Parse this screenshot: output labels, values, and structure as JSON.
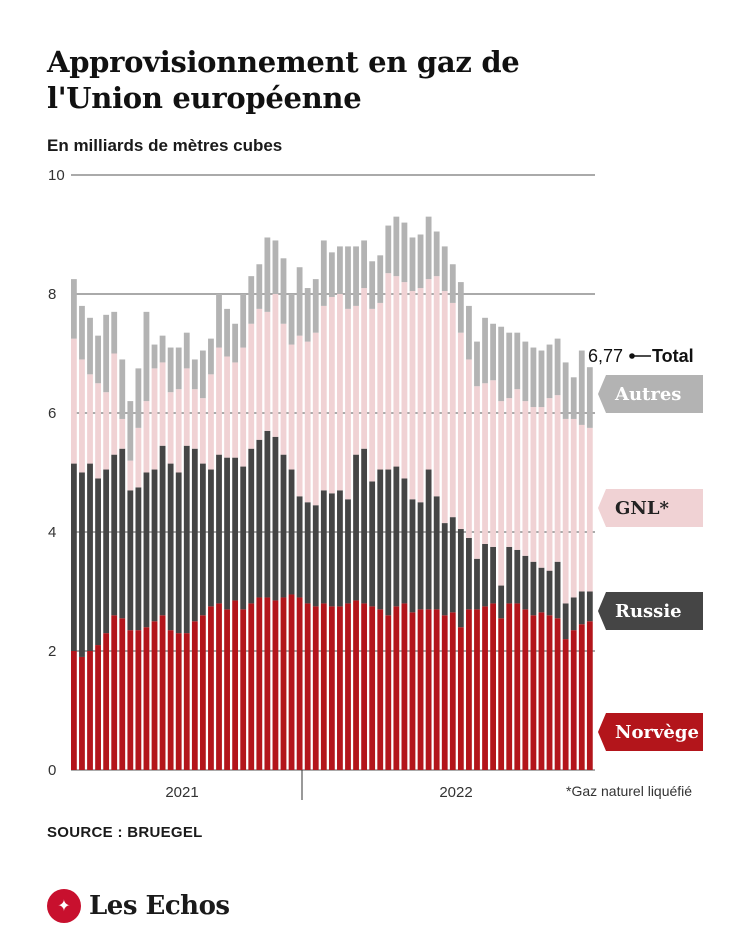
{
  "chart_data": {
    "type": "bar",
    "stacked": true,
    "title": "Approvisionnement en gaz de l'Union européenne",
    "subtitle": "En milliards de mètres cubes",
    "ylim": [
      0,
      10
    ],
    "yticks": [
      "0",
      "2",
      "4",
      "6",
      "8",
      "10"
    ],
    "x_year_labels": [
      "2021",
      "2022"
    ],
    "grid": "horizontal",
    "colors": {
      "norvege": "#b3151b",
      "russie": "#454545",
      "gnl": "#f0d2d4",
      "autres": "#b3b3b3",
      "label_text_light": "#ffffff",
      "label_text_dark": "#222222"
    },
    "series_order": [
      "norvege",
      "russie",
      "gnl",
      "autres"
    ],
    "series": [
      {
        "key": "norvege",
        "name": "Norvège",
        "values": [
          2.0,
          1.9,
          2.0,
          2.1,
          2.3,
          2.6,
          2.55,
          2.35,
          2.35,
          2.4,
          2.5,
          2.6,
          2.35,
          2.3,
          2.3,
          2.5,
          2.6,
          2.75,
          2.8,
          2.7,
          2.85,
          2.7,
          2.8,
          2.9,
          2.9,
          2.85,
          2.9,
          2.95,
          2.9,
          2.8,
          2.75,
          2.8,
          2.75,
          2.75,
          2.8,
          2.85,
          2.8,
          2.75,
          2.7,
          2.6,
          2.75,
          2.8,
          2.65,
          2.7,
          2.7,
          2.7,
          2.6,
          2.65,
          2.4,
          2.7,
          2.7,
          2.75,
          2.8,
          2.55,
          2.8,
          2.8,
          2.7,
          2.6,
          2.65,
          2.6,
          2.55,
          2.2,
          2.35,
          2.45,
          2.5
        ]
      },
      {
        "key": "russie",
        "name": "Russie",
        "values": [
          3.15,
          3.1,
          3.15,
          2.8,
          2.75,
          2.7,
          2.85,
          2.35,
          2.4,
          2.6,
          2.55,
          2.85,
          2.8,
          2.7,
          3.15,
          2.9,
          2.55,
          2.3,
          2.5,
          2.55,
          2.4,
          2.4,
          2.6,
          2.65,
          2.8,
          2.75,
          2.4,
          2.1,
          1.7,
          1.7,
          1.7,
          1.9,
          1.9,
          1.95,
          1.75,
          2.45,
          2.6,
          2.1,
          2.35,
          2.45,
          2.35,
          2.1,
          1.9,
          1.8,
          2.35,
          1.9,
          1.55,
          1.6,
          1.65,
          1.2,
          0.85,
          1.05,
          0.95,
          0.55,
          0.95,
          0.9,
          0.9,
          0.9,
          0.75,
          0.75,
          0.95,
          0.6,
          0.55,
          0.55,
          0.5
        ]
      },
      {
        "key": "gnl",
        "name": "GNL*",
        "values": [
          2.1,
          1.9,
          1.5,
          1.6,
          1.3,
          1.7,
          0.5,
          0.5,
          1.0,
          1.2,
          1.7,
          1.4,
          1.2,
          1.4,
          1.3,
          1.0,
          1.1,
          1.6,
          1.8,
          1.7,
          1.6,
          2.0,
          2.1,
          2.2,
          2.0,
          2.4,
          2.2,
          2.1,
          2.7,
          2.7,
          2.9,
          3.1,
          3.3,
          3.3,
          3.2,
          2.5,
          2.7,
          2.9,
          2.8,
          3.3,
          3.2,
          3.3,
          3.5,
          3.6,
          3.2,
          3.7,
          3.9,
          3.6,
          3.3,
          3.0,
          2.9,
          2.7,
          2.8,
          3.1,
          2.5,
          2.7,
          2.6,
          2.6,
          2.7,
          2.9,
          2.8,
          3.1,
          3.0,
          2.8,
          2.75
        ]
      },
      {
        "key": "autres",
        "name": "Autres",
        "values": [
          1.0,
          0.9,
          0.95,
          0.8,
          1.3,
          0.7,
          1.0,
          1.0,
          1.0,
          1.5,
          0.4,
          0.45,
          0.75,
          0.7,
          0.6,
          0.5,
          0.8,
          0.6,
          0.9,
          0.8,
          0.65,
          0.9,
          0.8,
          0.75,
          1.25,
          0.9,
          1.1,
          0.85,
          1.15,
          0.9,
          0.9,
          1.1,
          0.75,
          0.8,
          1.05,
          1.0,
          0.8,
          0.8,
          0.8,
          0.8,
          1.0,
          1.0,
          0.9,
          0.9,
          1.05,
          0.75,
          0.75,
          0.65,
          0.85,
          0.9,
          0.75,
          1.1,
          0.95,
          1.25,
          1.1,
          0.95,
          1.0,
          1.0,
          0.95,
          0.9,
          0.95,
          0.95,
          0.7,
          1.25,
          1.02
        ]
      }
    ],
    "legend": [
      {
        "key": "autres",
        "label": "Autres"
      },
      {
        "key": "gnl",
        "label": "GNL*"
      },
      {
        "key": "russie",
        "label": "Russie"
      },
      {
        "key": "norvege",
        "label": "Norvège"
      }
    ],
    "total_annotation": {
      "value": "6,77",
      "label": "Total"
    },
    "footnote": "*Gaz naturel liquéfié"
  },
  "source": "SOURCE : BRUEGEL",
  "logo": {
    "name": "Les Echos",
    "icon": "les-echos-bird-icon"
  }
}
